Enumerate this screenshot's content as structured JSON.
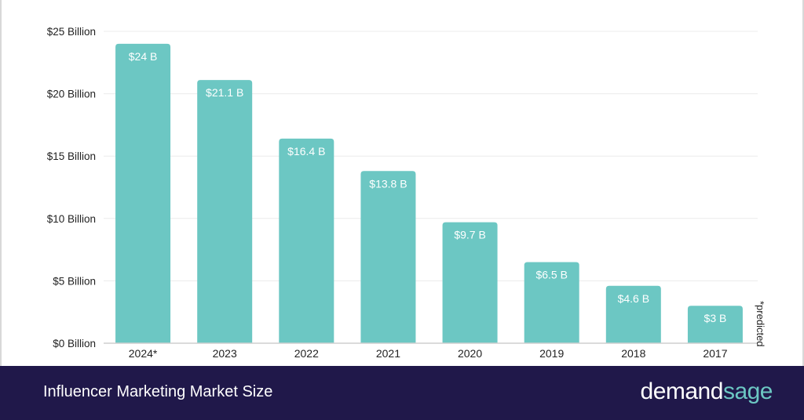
{
  "chart_data": {
    "type": "bar",
    "title": "Influencer Marketing Market Size",
    "categories": [
      "2024*",
      "2023",
      "2022",
      "2021",
      "2020",
      "2019",
      "2018",
      "2017"
    ],
    "values": [
      24,
      21.1,
      16.4,
      13.8,
      9.7,
      6.5,
      4.6,
      3
    ],
    "data_labels": [
      "$24 B",
      "$21.1 B",
      "$16.4 B",
      "$13.8 B",
      "$9.7 B",
      "$6.5 B",
      "$4.6 B",
      "$3 B"
    ],
    "yticks": [
      0,
      5,
      10,
      15,
      20,
      25
    ],
    "ytick_labels": [
      "$0 Billion",
      "$5 Billion",
      "$10 Billion",
      "$15 Billion",
      "$20 Billion",
      "$25 Billion"
    ],
    "ylim": [
      0,
      25
    ],
    "xlabel": "",
    "ylabel": "",
    "grid": true,
    "annotation": "*predicted",
    "bar_color": "#6cc7c3"
  },
  "footer": {
    "title": "Influencer Marketing Market Size",
    "logo_part1": "demand",
    "logo_part2": "sage",
    "background": "#20184a"
  }
}
